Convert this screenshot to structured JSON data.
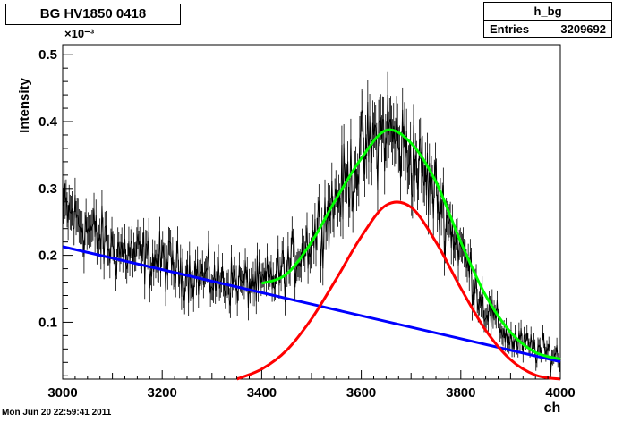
{
  "histogram": {
    "title": "BG HV1850 0418",
    "stats": {
      "name": "h_bg",
      "entries_label": "Entries",
      "entries_value": "3209692"
    },
    "timestamp": "Mon Jun 20 22:59:41 2011"
  },
  "chart_data": {
    "type": "line",
    "title": "BG HV1850 0418",
    "xlabel": "ch",
    "ylabel": "Intensity",
    "y_exponent_label": "×10⁻³",
    "xlim": [
      3000,
      4000
    ],
    "ylim": [
      1.5e-05,
      0.000515
    ],
    "x_ticks": [
      3000,
      3200,
      3400,
      3600,
      3800,
      4000
    ],
    "x_tick_labels": [
      "3000",
      "3200",
      "3400",
      "3600",
      "3800",
      "4000"
    ],
    "y_ticks": [
      0.0001,
      0.0002,
      0.0003,
      0.0004,
      0.0005
    ],
    "y_tick_labels": [
      "0.1",
      "0.2",
      "0.3",
      "0.4",
      "0.5"
    ],
    "series": [
      {
        "kind": "histogram",
        "color": "#000000",
        "x": [
          3000,
          3050,
          3100,
          3150,
          3200,
          3250,
          3300,
          3350,
          3400,
          3450,
          3500,
          3550,
          3600,
          3650,
          3700,
          3750,
          3800,
          3850,
          3900,
          3950,
          4000
        ],
        "y": [
          0.00027,
          0.00024,
          0.00021,
          0.0002,
          0.00019,
          0.000175,
          0.000165,
          0.00016,
          0.000155,
          0.00018,
          0.000225,
          0.000285,
          0.00035,
          0.00039,
          0.00035,
          0.00029,
          0.00021,
          0.00012,
          7.5e-05,
          6e-05,
          5e-05
        ]
      },
      {
        "kind": "fit-background",
        "color": "#0000ff",
        "x": [
          3000,
          4000
        ],
        "y": [
          0.000213,
          4.1e-05
        ]
      },
      {
        "kind": "fit-peak",
        "color": "#ff0000",
        "x": [
          3350,
          3400,
          3450,
          3500,
          3550,
          3600,
          3650,
          3700,
          3750,
          3800,
          3850,
          3900,
          3950,
          4000
        ],
        "y": [
          1.5e-05,
          3e-05,
          5.8e-05,
          0.000105,
          0.000165,
          0.000228,
          0.000275,
          0.000272,
          0.00022,
          0.000151,
          8.8e-05,
          4.4e-05,
          2.1e-05,
          1.5e-05
        ]
      },
      {
        "kind": "fit-total",
        "color": "#00ff00",
        "x": [
          3400,
          3450,
          3500,
          3550,
          3600,
          3650,
          3700,
          3750,
          3800,
          3850,
          3900,
          3950,
          4000
        ],
        "y": [
          0.000158,
          0.000172,
          0.00022,
          0.000285,
          0.000345,
          0.000387,
          0.000368,
          0.00031,
          0.00022,
          0.00014,
          8.5e-05,
          5.5e-05,
          4.5e-05
        ]
      }
    ]
  }
}
